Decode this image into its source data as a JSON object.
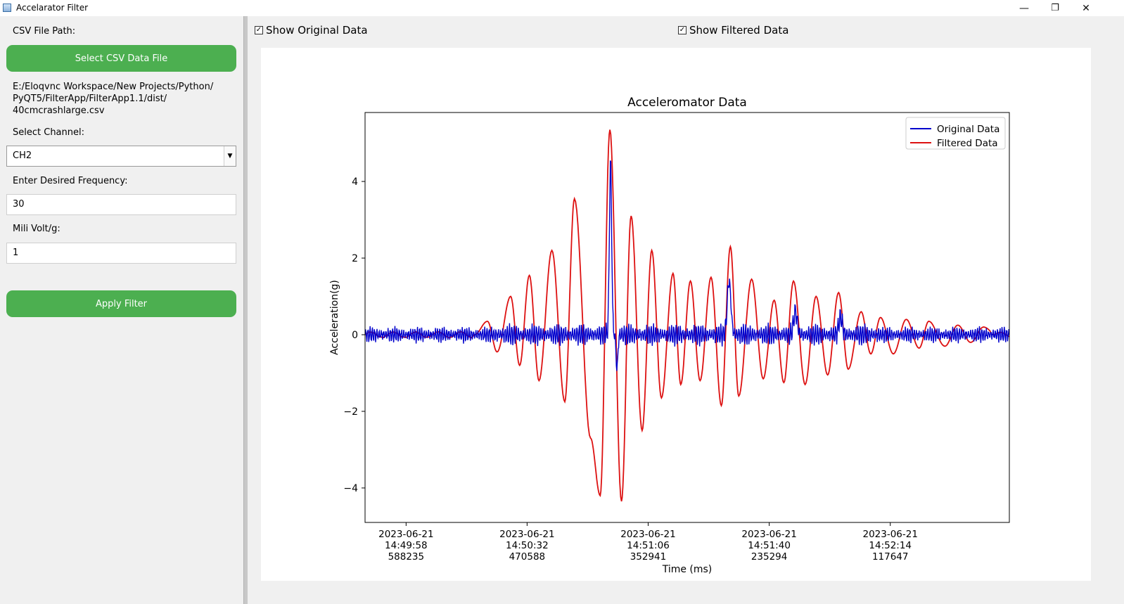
{
  "window": {
    "title": "Accelarator Filter",
    "minimize_glyph": "—",
    "maximize_glyph": "❐",
    "close_glyph": "✕"
  },
  "sidebar": {
    "csv_label": "CSV File Path:",
    "select_button": "Select CSV Data File",
    "file_path_lines": [
      "E:/Eloqvnc Workspace/New Projects/Python/",
      "PyQT5/FilterApp/FilterApp1.1/dist/",
      "40cmcrashlarge.csv"
    ],
    "channel_label": "Select Channel:",
    "channel_value": "CH2",
    "frequency_label": "Enter Desired Frequency:",
    "frequency_value": "30",
    "mv_label": "Mili Volt/g:",
    "mv_value": "1",
    "apply_button": "Apply Filter"
  },
  "checkboxes": {
    "show_original": {
      "label": "Show Original Data",
      "checked": true
    },
    "show_filtered": {
      "label": "Show Filtered Data",
      "checked": true
    }
  },
  "chart_data": {
    "type": "line",
    "title": "Acceleromator Data",
    "xlabel": "Time (ms)",
    "ylabel": "Acceleration(g)",
    "ylim": [
      -4.9,
      5.8
    ],
    "yticks": [
      4,
      2,
      0,
      -2,
      -4
    ],
    "ytick_labels": [
      "4",
      "2",
      "0",
      "−2",
      "−4"
    ],
    "xticks": [
      [
        "2023-06-21",
        "14:49:58",
        "588235"
      ],
      [
        "2023-06-21",
        "14:50:32",
        "470588"
      ],
      [
        "2023-06-21",
        "14:51:06",
        "352941"
      ],
      [
        "2023-06-21",
        "14:51:40",
        "235294"
      ],
      [
        "2023-06-21",
        "14:52:14",
        "117647"
      ]
    ],
    "xtick_positions": [
      0.0637,
      0.2515,
      0.4394,
      0.6273,
      0.8152
    ],
    "legend": "top-right",
    "grid": false,
    "series": [
      {
        "name": "Original Data",
        "color": "#0000cc",
        "description_points": [
          [
            0.0,
            0.0
          ],
          [
            0.1,
            0.15
          ],
          [
            0.2,
            -0.1
          ],
          [
            0.3,
            0.1
          ],
          [
            0.36,
            0.3
          ],
          [
            0.38,
            4.6
          ],
          [
            0.39,
            -0.9
          ],
          [
            0.45,
            0.3
          ],
          [
            0.56,
            0.2
          ],
          [
            0.565,
            1.5
          ],
          [
            0.6,
            0.1
          ],
          [
            0.665,
            0.75
          ],
          [
            0.7,
            0.1
          ],
          [
            0.735,
            0.55
          ],
          [
            0.8,
            0.1
          ],
          [
            1.0,
            0.05
          ]
        ]
      },
      {
        "name": "Filtered Data",
        "color": "#dd1111",
        "peaks": [
          [
            0.19,
            0.35
          ],
          [
            0.226,
            1.0
          ],
          [
            0.255,
            1.55
          ],
          [
            0.29,
            2.2
          ],
          [
            0.325,
            3.55
          ],
          [
            0.38,
            5.35
          ],
          [
            0.413,
            3.1
          ],
          [
            0.445,
            2.2
          ],
          [
            0.478,
            1.6
          ],
          [
            0.505,
            1.4
          ],
          [
            0.537,
            1.5
          ],
          [
            0.567,
            2.3
          ],
          [
            0.6,
            1.45
          ],
          [
            0.635,
            0.9
          ],
          [
            0.665,
            1.4
          ],
          [
            0.7,
            1.0
          ],
          [
            0.735,
            1.1
          ],
          [
            0.77,
            0.6
          ],
          [
            0.8,
            0.45
          ],
          [
            0.84,
            0.4
          ],
          [
            0.875,
            0.35
          ],
          [
            0.92,
            0.25
          ],
          [
            0.96,
            0.2
          ]
        ],
        "troughs": [
          [
            0.205,
            -0.45
          ],
          [
            0.24,
            -0.8
          ],
          [
            0.27,
            -1.2
          ],
          [
            0.31,
            -1.75
          ],
          [
            0.35,
            -2.7
          ],
          [
            0.365,
            -4.2
          ],
          [
            0.398,
            -4.35
          ],
          [
            0.43,
            -2.5
          ],
          [
            0.46,
            -1.65
          ],
          [
            0.49,
            -1.3
          ],
          [
            0.52,
            -1.2
          ],
          [
            0.553,
            -1.85
          ],
          [
            0.58,
            -1.6
          ],
          [
            0.618,
            -1.15
          ],
          [
            0.65,
            -1.25
          ],
          [
            0.683,
            -1.3
          ],
          [
            0.718,
            -1.05
          ],
          [
            0.75,
            -0.9
          ],
          [
            0.785,
            -0.5
          ],
          [
            0.82,
            -0.5
          ],
          [
            0.86,
            -0.35
          ],
          [
            0.9,
            -0.3
          ],
          [
            0.94,
            -0.2
          ]
        ]
      }
    ]
  }
}
